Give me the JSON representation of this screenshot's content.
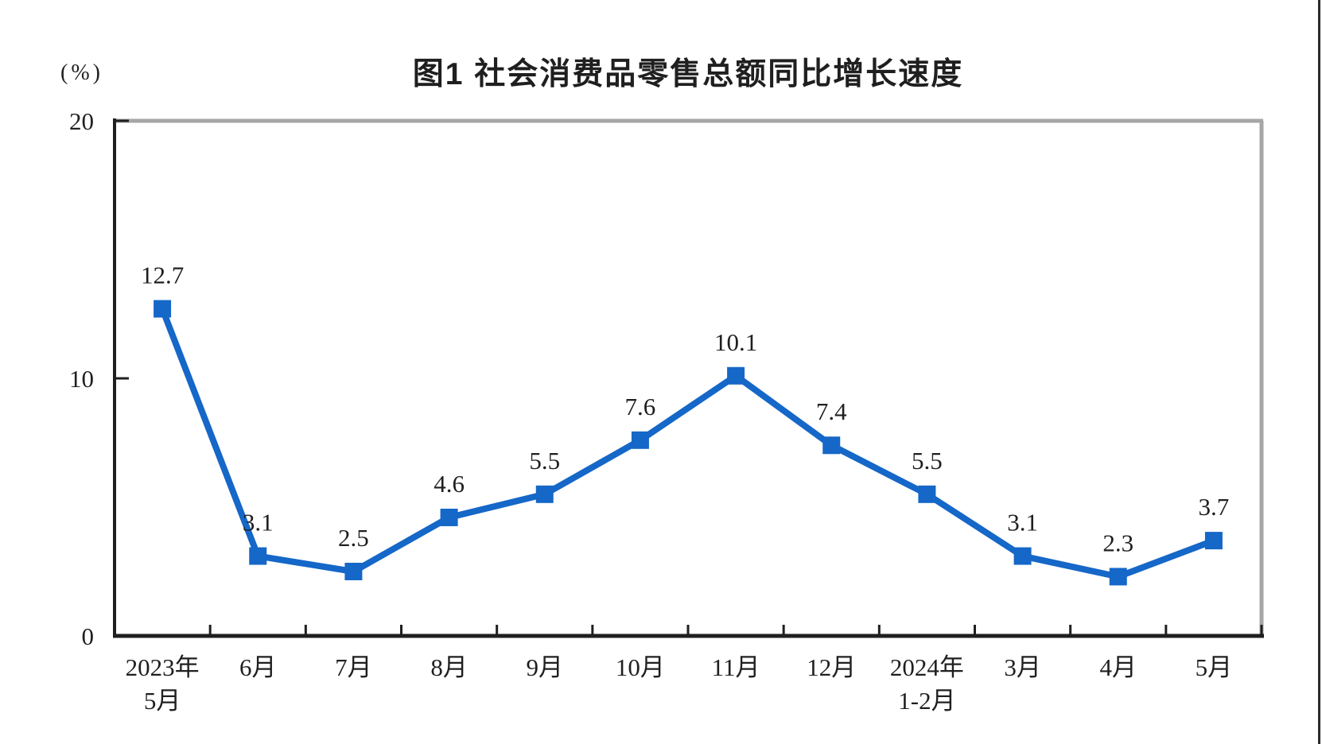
{
  "page": {
    "background": "#ffffff"
  },
  "chart_data": {
    "type": "line",
    "title": "图1 社会消费品零售总额同比增长速度",
    "unit_label": "(%)",
    "categories": [
      "2023年\n5月",
      "6月",
      "7月",
      "8月",
      "9月",
      "10月",
      "11月",
      "12月",
      "2024年\n1-2月",
      "3月",
      "4月",
      "5月"
    ],
    "values": [
      12.7,
      3.1,
      2.5,
      4.6,
      5.5,
      7.6,
      10.1,
      7.4,
      5.5,
      3.1,
      2.3,
      3.7
    ],
    "data_labels": [
      "12.7",
      "3.1",
      "2.5",
      "4.6",
      "5.5",
      "7.6",
      "10.1",
      "7.4",
      "5.5",
      "3.1",
      "2.3",
      "3.7"
    ],
    "ylim": [
      0,
      20
    ],
    "yticks": [
      "0",
      "10",
      "20"
    ],
    "grid": false,
    "legend_position": "none",
    "marker_shape": "square",
    "colors": {
      "line": "#1567C8",
      "marker": "#1567C8",
      "axis": "#1f1f1f",
      "frame": "#A6A6A6",
      "text": "#1f1f1f"
    }
  }
}
